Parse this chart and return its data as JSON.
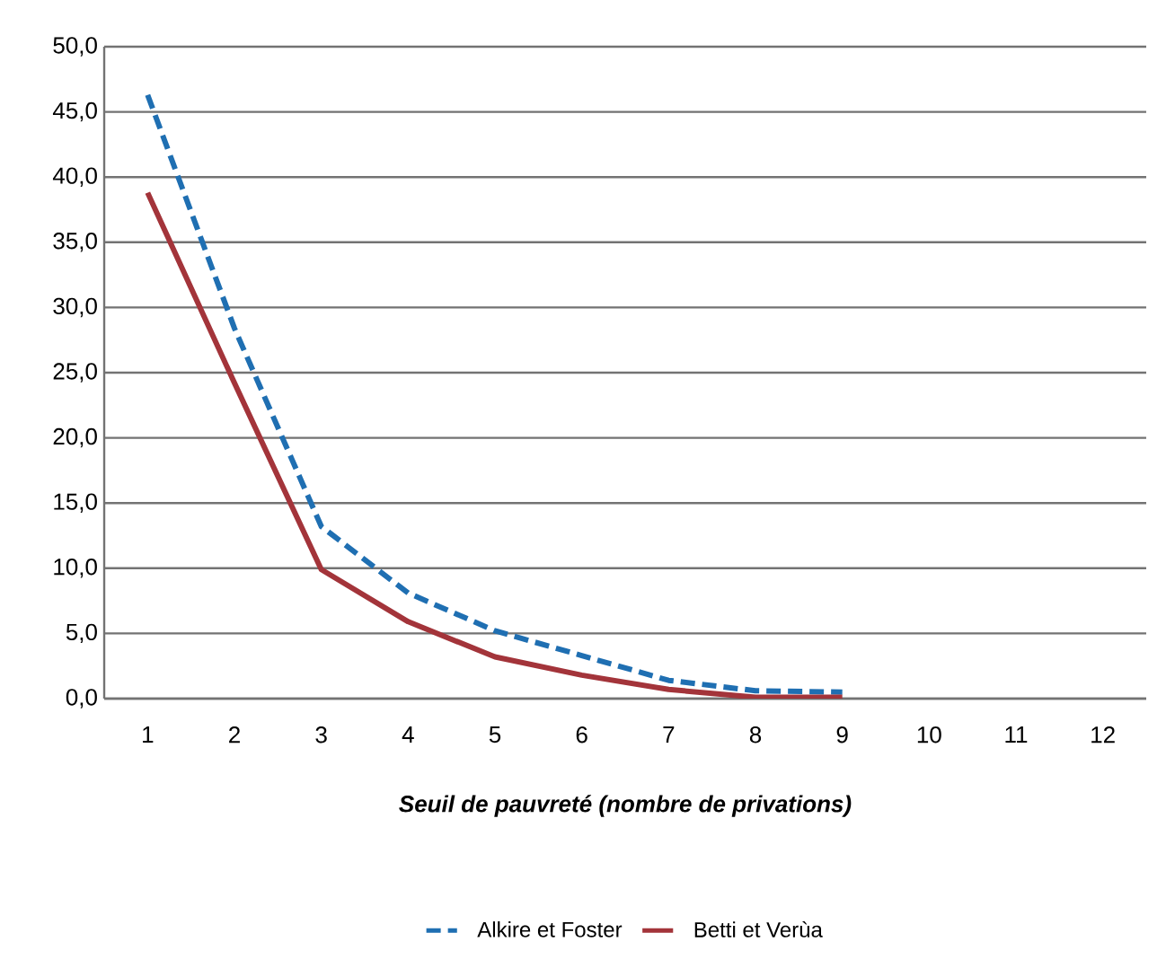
{
  "chart_data": {
    "type": "line",
    "xlabel": "Seuil de pauvreté (nombre de privations)",
    "categories": [
      "1",
      "2",
      "3",
      "4",
      "5",
      "6",
      "7",
      "8",
      "9",
      "10",
      "11",
      "12"
    ],
    "series": [
      {
        "name": "Alkire et Foster",
        "color": "#1f6fb2",
        "line_style": "dashed",
        "values": [
          46.3,
          28.4,
          13.2,
          8.1,
          5.2,
          3.3,
          1.4,
          0.6,
          0.5,
          null,
          null,
          null
        ]
      },
      {
        "name": "Betti et Verùa",
        "color": "#a3343a",
        "line_style": "solid",
        "values": [
          38.8,
          24.2,
          9.9,
          5.9,
          3.2,
          1.8,
          0.7,
          0.1,
          0.1,
          null,
          null,
          null
        ]
      }
    ],
    "ylim": [
      0,
      50
    ],
    "yticks": [
      {
        "value": 0,
        "label": "0,0"
      },
      {
        "value": 5,
        "label": "5,0"
      },
      {
        "value": 10,
        "label": "10,0"
      },
      {
        "value": 15,
        "label": "15,0"
      },
      {
        "value": 20,
        "label": "20,0"
      },
      {
        "value": 25,
        "label": "25,0"
      },
      {
        "value": 30,
        "label": "30,0"
      },
      {
        "value": 35,
        "label": "35,0"
      },
      {
        "value": 40,
        "label": "40,0"
      },
      {
        "value": 45,
        "label": "45,0"
      },
      {
        "value": 50,
        "label": "50,0"
      }
    ],
    "grid": "y",
    "legend": "bottom",
    "marker": "none"
  }
}
